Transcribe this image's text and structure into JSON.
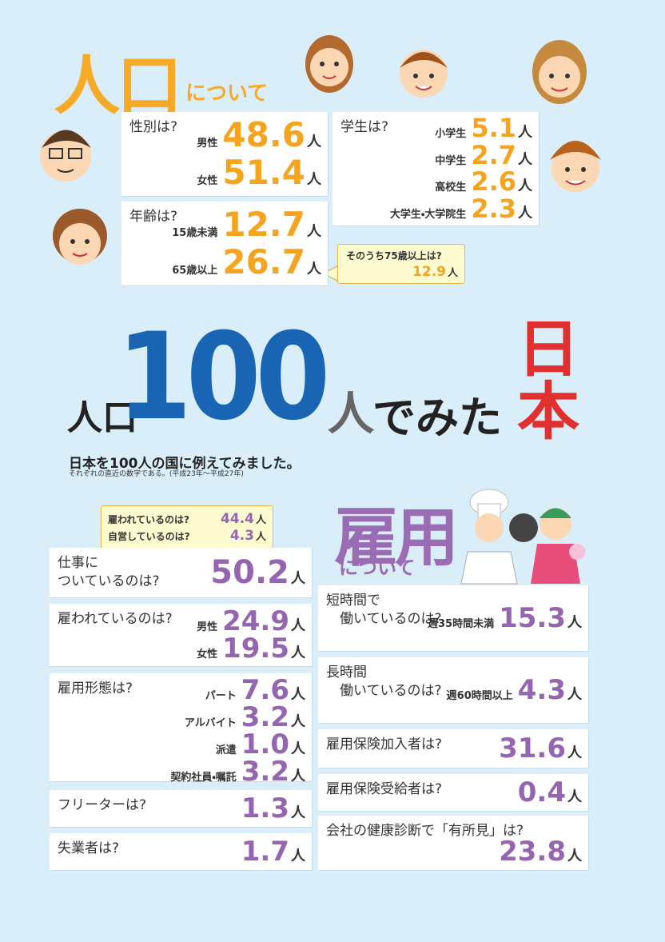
{
  "population": {
    "title_big": "人口",
    "title_small": "について",
    "sex": {
      "label": "性別は?",
      "rows": [
        {
          "label": "男性",
          "value": "48.6",
          "unit": "人"
        },
        {
          "label": "女性",
          "value": "51.4",
          "unit": "人"
        }
      ]
    },
    "students": {
      "label": "学生は?",
      "rows": [
        {
          "label": "小学生",
          "value": "5.1",
          "unit": "人"
        },
        {
          "label": "中学生",
          "value": "2.7",
          "unit": "人"
        },
        {
          "label": "高校生",
          "value": "2.6",
          "unit": "人"
        },
        {
          "label": "大学生・大学院生",
          "value": "2.3",
          "unit": "人"
        }
      ]
    },
    "age": {
      "label": "年齢は?",
      "rows": [
        {
          "label": "15歳未満",
          "value": "12.7",
          "unit": "人"
        },
        {
          "label": "65歳以上",
          "value": "26.7",
          "unit": "人"
        }
      ]
    },
    "age_callout": {
      "label": "そのうち75歳以上は?",
      "rows": [
        {
          "value": "12.9",
          "unit": "人"
        }
      ]
    }
  },
  "headline": {
    "prefix": "人口",
    "number": "100",
    "char": "人",
    "suffix": "でみた",
    "country": "日本",
    "subtitle": "日本を100人の国に例えてみました。",
    "note": "それぞれの直近の数字である。(平成23年～平成27年)"
  },
  "employment": {
    "title_big": "雇用",
    "title_small": "について",
    "callout": {
      "rows": [
        {
          "label": "雇われているのは?",
          "value": "44.4",
          "unit": "人"
        },
        {
          "label": "自営しているのは?",
          "value": "4.3",
          "unit": "人"
        }
      ]
    },
    "left": [
      {
        "label": "仕事に\nついているのは?",
        "rows": [
          {
            "value": "50.2",
            "unit": "人"
          }
        ]
      },
      {
        "label": "雇われているのは?",
        "rows": [
          {
            "label": "男性",
            "value": "24.9",
            "unit": "人"
          },
          {
            "label": "女性",
            "value": "19.5",
            "unit": "人"
          }
        ]
      },
      {
        "label": "雇用形態は?",
        "rows": [
          {
            "label": "パート",
            "value": "7.6",
            "unit": "人"
          },
          {
            "label": "アルバイト",
            "value": "3.2",
            "unit": "人"
          },
          {
            "label": "派遣",
            "value": "1.0",
            "unit": "人"
          },
          {
            "label": "契約社員・嘱託",
            "value": "3.2",
            "unit": "人"
          }
        ]
      },
      {
        "label": "フリーターは?",
        "rows": [
          {
            "value": "1.3",
            "unit": "人"
          }
        ]
      },
      {
        "label": "失業者は?",
        "rows": [
          {
            "value": "1.7",
            "unit": "人"
          }
        ]
      }
    ],
    "right": [
      {
        "label": "短時間で\n　働いているのは?",
        "rows": [
          {
            "label": "週35時間未満",
            "value": "15.3",
            "unit": "人"
          }
        ]
      },
      {
        "label": "長時間\n　働いているのは?",
        "rows": [
          {
            "label": "週60時間以上",
            "value": "4.3",
            "unit": "人"
          }
        ]
      },
      {
        "label": "雇用保険加入者は?",
        "rows": [
          {
            "value": "31.6",
            "unit": "人"
          }
        ]
      },
      {
        "label": "雇用保険受給者は?",
        "rows": [
          {
            "value": "0.4",
            "unit": "人"
          }
        ]
      },
      {
        "label": "会社の健康診断で「有所見」は?",
        "rows": [
          {
            "value": "23.8",
            "unit": "人"
          }
        ]
      }
    ]
  }
}
